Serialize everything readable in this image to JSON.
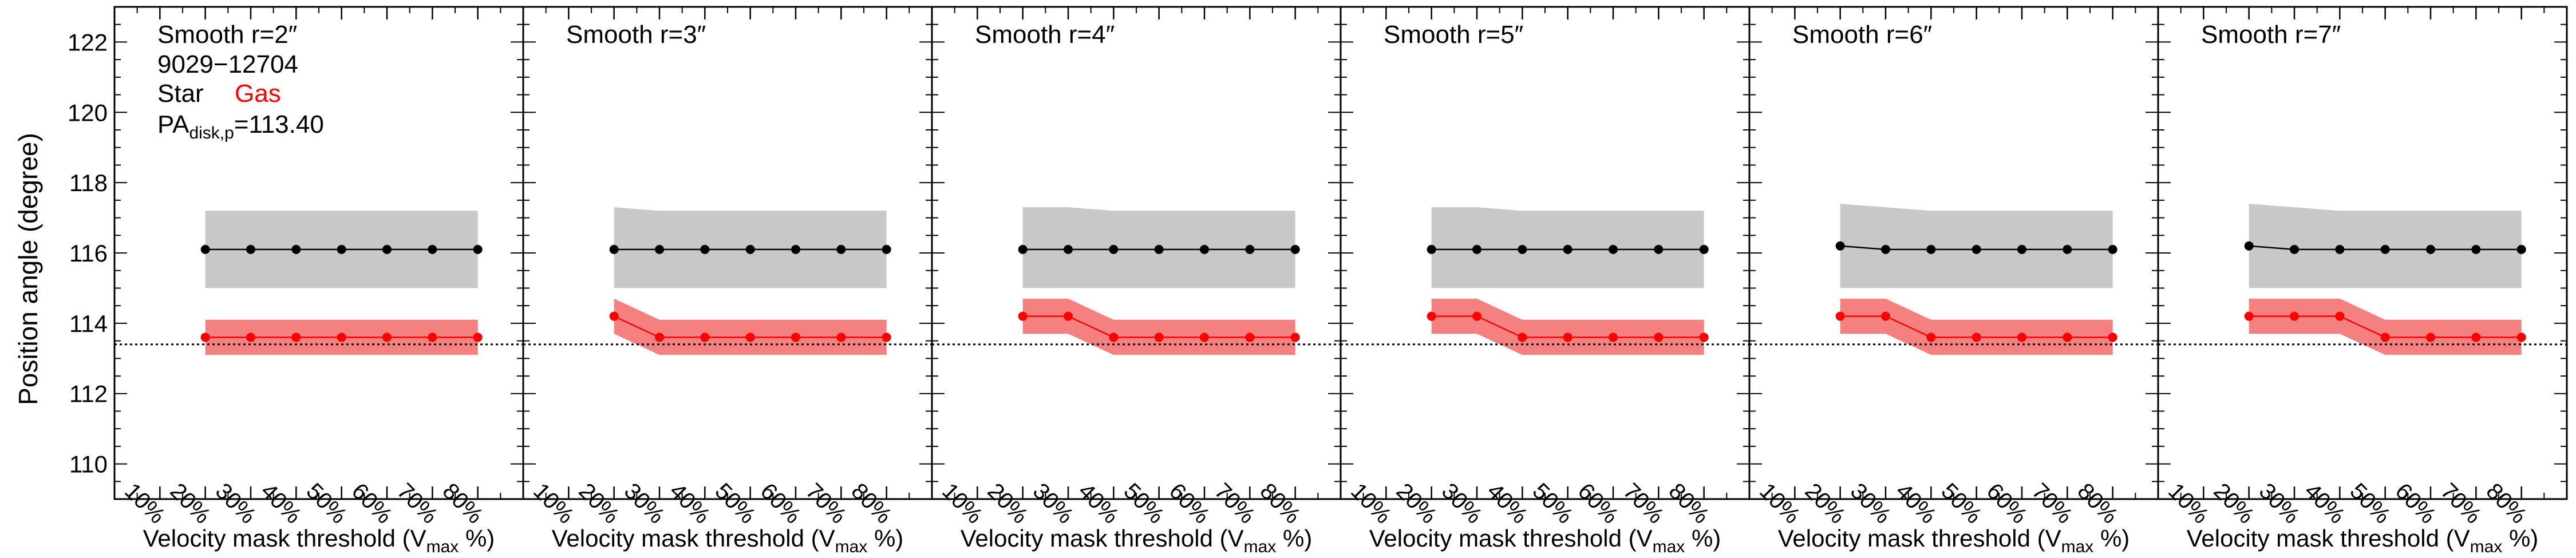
{
  "figure": {
    "ylabel": "Position angle (degree)",
    "xlabel": {
      "main": "Velocity mask threshold (V",
      "sub": "max",
      "tail": " %)"
    },
    "annotations": {
      "id": "9029−12704",
      "legend_star": "Star",
      "legend_gas": "Gas",
      "pa_prefix": "PA",
      "pa_sub": "disk,p",
      "pa_suffix": "=113.40"
    },
    "colors": {
      "star": "#000000",
      "gas": "#ff0000",
      "star_band": "#c8c8c8",
      "gas_band": "#f58080"
    }
  },
  "chart_data": {
    "type": "line",
    "panel_count": 6,
    "x_categories": [
      "10%",
      "20%",
      "30%",
      "40%",
      "50%",
      "60%",
      "70%",
      "80%"
    ],
    "x_range": [
      0,
      90
    ],
    "ylim": [
      109,
      123
    ],
    "y_ticks": [
      110,
      112,
      114,
      116,
      118,
      120,
      122
    ],
    "reference_line": {
      "y": 113.4,
      "style": "dotted"
    },
    "legend": [
      "Star",
      "Gas"
    ],
    "panels": [
      {
        "title": "Smooth r=2″",
        "x": [
          20,
          30,
          40,
          50,
          60,
          70,
          80
        ],
        "series": [
          {
            "name": "Star",
            "values": [
              116.1,
              116.1,
              116.1,
              116.1,
              116.1,
              116.1,
              116.1
            ],
            "band_upper": [
              117.2,
              117.2,
              117.2,
              117.2,
              117.2,
              117.2,
              117.2
            ],
            "band_lower": [
              115.0,
              115.0,
              115.0,
              115.0,
              115.0,
              115.0,
              115.0
            ]
          },
          {
            "name": "Gas",
            "values": [
              113.6,
              113.6,
              113.6,
              113.6,
              113.6,
              113.6,
              113.6
            ],
            "band_upper": [
              114.1,
              114.1,
              114.1,
              114.1,
              114.1,
              114.1,
              114.1
            ],
            "band_lower": [
              113.1,
              113.1,
              113.1,
              113.1,
              113.1,
              113.1,
              113.1
            ]
          }
        ]
      },
      {
        "title": "Smooth r=3″",
        "x": [
          20,
          30,
          40,
          50,
          60,
          70,
          80
        ],
        "series": [
          {
            "name": "Star",
            "values": [
              116.1,
              116.1,
              116.1,
              116.1,
              116.1,
              116.1,
              116.1
            ],
            "band_upper": [
              117.3,
              117.2,
              117.2,
              117.2,
              117.2,
              117.2,
              117.2
            ],
            "band_lower": [
              115.0,
              115.0,
              115.0,
              115.0,
              115.0,
              115.0,
              115.0
            ]
          },
          {
            "name": "Gas",
            "values": [
              114.2,
              113.6,
              113.6,
              113.6,
              113.6,
              113.6,
              113.6
            ],
            "band_upper": [
              114.7,
              114.1,
              114.1,
              114.1,
              114.1,
              114.1,
              114.1
            ],
            "band_lower": [
              113.7,
              113.1,
              113.1,
              113.1,
              113.1,
              113.1,
              113.1
            ]
          }
        ]
      },
      {
        "title": "Smooth r=4″",
        "x": [
          20,
          30,
          40,
          50,
          60,
          70,
          80
        ],
        "series": [
          {
            "name": "Star",
            "values": [
              116.1,
              116.1,
              116.1,
              116.1,
              116.1,
              116.1,
              116.1
            ],
            "band_upper": [
              117.3,
              117.3,
              117.2,
              117.2,
              117.2,
              117.2,
              117.2
            ],
            "band_lower": [
              115.0,
              115.0,
              115.0,
              115.0,
              115.0,
              115.0,
              115.0
            ]
          },
          {
            "name": "Gas",
            "values": [
              114.2,
              114.2,
              113.6,
              113.6,
              113.6,
              113.6,
              113.6
            ],
            "band_upper": [
              114.7,
              114.7,
              114.1,
              114.1,
              114.1,
              114.1,
              114.1
            ],
            "band_lower": [
              113.7,
              113.7,
              113.1,
              113.1,
              113.1,
              113.1,
              113.1
            ]
          }
        ]
      },
      {
        "title": "Smooth r=5″",
        "x": [
          20,
          30,
          40,
          50,
          60,
          70,
          80
        ],
        "series": [
          {
            "name": "Star",
            "values": [
              116.1,
              116.1,
              116.1,
              116.1,
              116.1,
              116.1,
              116.1
            ],
            "band_upper": [
              117.3,
              117.3,
              117.2,
              117.2,
              117.2,
              117.2,
              117.2
            ],
            "band_lower": [
              115.0,
              115.0,
              115.0,
              115.0,
              115.0,
              115.0,
              115.0
            ]
          },
          {
            "name": "Gas",
            "values": [
              114.2,
              114.2,
              113.6,
              113.6,
              113.6,
              113.6,
              113.6
            ],
            "band_upper": [
              114.7,
              114.7,
              114.1,
              114.1,
              114.1,
              114.1,
              114.1
            ],
            "band_lower": [
              113.7,
              113.7,
              113.1,
              113.1,
              113.1,
              113.1,
              113.1
            ]
          }
        ]
      },
      {
        "title": "Smooth r=6″",
        "x": [
          20,
          30,
          40,
          50,
          60,
          70,
          80
        ],
        "series": [
          {
            "name": "Star",
            "values": [
              116.2,
              116.1,
              116.1,
              116.1,
              116.1,
              116.1,
              116.1
            ],
            "band_upper": [
              117.4,
              117.3,
              117.2,
              117.2,
              117.2,
              117.2,
              117.2
            ],
            "band_lower": [
              115.0,
              115.0,
              115.0,
              115.0,
              115.0,
              115.0,
              115.0
            ]
          },
          {
            "name": "Gas",
            "values": [
              114.2,
              114.2,
              113.6,
              113.6,
              113.6,
              113.6,
              113.6
            ],
            "band_upper": [
              114.7,
              114.7,
              114.1,
              114.1,
              114.1,
              114.1,
              114.1
            ],
            "band_lower": [
              113.7,
              113.7,
              113.1,
              113.1,
              113.1,
              113.1,
              113.1
            ]
          }
        ]
      },
      {
        "title": "Smooth r=7″",
        "x": [
          20,
          30,
          40,
          50,
          60,
          70,
          80
        ],
        "series": [
          {
            "name": "Star",
            "values": [
              116.2,
              116.1,
              116.1,
              116.1,
              116.1,
              116.1,
              116.1
            ],
            "band_upper": [
              117.4,
              117.3,
              117.2,
              117.2,
              117.2,
              117.2,
              117.2
            ],
            "band_lower": [
              115.0,
              115.0,
              115.0,
              115.0,
              115.0,
              115.0,
              115.0
            ]
          },
          {
            "name": "Gas",
            "values": [
              114.2,
              114.2,
              114.2,
              113.6,
              113.6,
              113.6,
              113.6
            ],
            "band_upper": [
              114.7,
              114.7,
              114.7,
              114.1,
              114.1,
              114.1,
              114.1
            ],
            "band_lower": [
              113.7,
              113.7,
              113.7,
              113.1,
              113.1,
              113.1,
              113.1
            ]
          }
        ]
      }
    ]
  }
}
